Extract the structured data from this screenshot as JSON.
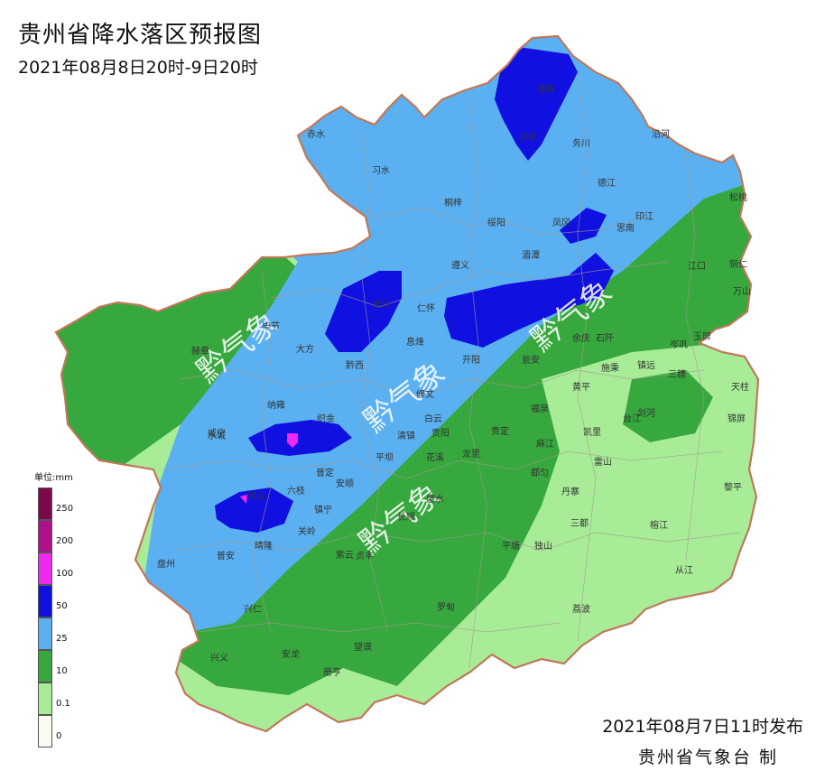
{
  "title": "贵州省降水落区预报图",
  "subtitle": "2021年08月8日20时-9日20时",
  "issued": "2021年08月7日11时发布",
  "maker": "贵州省气象台  制",
  "watermark": "黔气象",
  "legend": {
    "unit": "单位:mm",
    "levels": [
      {
        "label": "250",
        "color": "#7a0a4a"
      },
      {
        "label": "200",
        "color": "#b0108a"
      },
      {
        "label": "100",
        "color": "#f028f0"
      },
      {
        "label": "50",
        "color": "#1010e0"
      },
      {
        "label": "25",
        "color": "#5ab0f0"
      },
      {
        "label": "10",
        "color": "#36a83e"
      },
      {
        "label": "0.1",
        "color": "#a8ec98"
      },
      {
        "label": "0",
        "color": "#fafaf0"
      }
    ]
  },
  "colors": {
    "light_green": "#a8ec98",
    "green": "#36a83e",
    "light_blue": "#5ab0f0",
    "blue": "#1010e0",
    "magenta": "#f028f0",
    "border": "#c0785a"
  },
  "cities": [
    "赤水",
    "习水",
    "桐梓",
    "绥阳",
    "道真",
    "正安",
    "务川",
    "沿河",
    "德江",
    "凤冈",
    "湄潭",
    "思南",
    "印江",
    "松桃",
    "遵义",
    "江口",
    "铜仁",
    "万山",
    "金沙",
    "毕节",
    "赫章",
    "大方",
    "黔西",
    "仁怀",
    "余庆",
    "石阡",
    "施秉",
    "镇远",
    "三穗",
    "岑巩",
    "玉屏",
    "天柱",
    "锦屏",
    "黎平",
    "剑河",
    "台江",
    "凯里",
    "雷山",
    "榕江",
    "从江",
    "三都",
    "丹寨",
    "麻江",
    "都匀",
    "独山",
    "荔波",
    "平塘",
    "威宁",
    "纳雍",
    "织金",
    "修文",
    "息烽",
    "开阳",
    "瓮安",
    "黄平",
    "福泉",
    "贵定",
    "龙里",
    "白云",
    "贵阳",
    "清镇",
    "平坝",
    "花溪",
    "长顺",
    "惠水",
    "罗甸",
    "六枝",
    "水城",
    "盘州",
    "普安",
    "晴隆",
    "关岭",
    "镇宁",
    "安顺",
    "普定",
    "紫云",
    "贞丰",
    "兴仁",
    "兴义",
    "安龙",
    "册亨",
    "望谟",
    "钟山"
  ]
}
